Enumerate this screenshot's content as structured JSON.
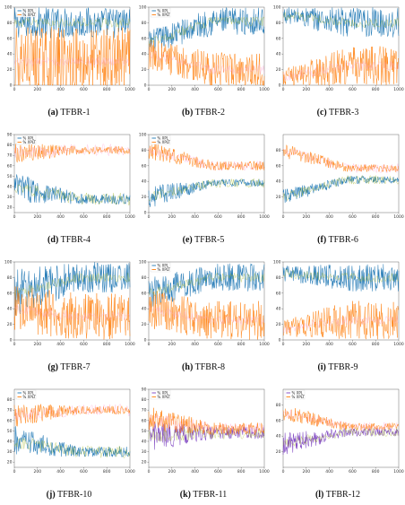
{
  "colors": {
    "pl": "#1f77b4",
    "plt": "#ff7f0e",
    "pink": "#ff9fd0",
    "olive": "#9fb320",
    "purple": "#7a3fc0"
  },
  "chart_data": [
    {
      "id": "TFBR-1",
      "caption_letter": "(a)",
      "caption_name": "TFBR-1",
      "type": "line",
      "xlim": [
        0,
        1000
      ],
      "ylim": [
        0,
        100
      ],
      "xticks": [
        0,
        200,
        400,
        600,
        800,
        1000
      ],
      "yticks": [
        0,
        20,
        40,
        60,
        80,
        100
      ],
      "legend": [
        "% XPL",
        "% XPLT"
      ],
      "series": [
        {
          "name": "% XPL",
          "color": "#1f77b4",
          "start": 80,
          "end": 80,
          "spread_start": 20,
          "spread_end": 20
        },
        {
          "name": "% XPLT",
          "color": "#ff7f0e",
          "start": 30,
          "end": 30,
          "spread_start": 45,
          "spread_end": 45
        }
      ]
    },
    {
      "id": "TFBR-2",
      "caption_letter": "(b)",
      "caption_name": "TFBR-2",
      "type": "line",
      "xlim": [
        0,
        1000
      ],
      "ylim": [
        0,
        100
      ],
      "xticks": [
        0,
        200,
        400,
        600,
        800,
        1000
      ],
      "yticks": [
        0,
        20,
        40,
        60,
        80,
        100
      ],
      "legend": [
        "% XPL",
        "% XPLT"
      ],
      "series": [
        {
          "name": "% XPL",
          "color": "#1f77b4",
          "start": 55,
          "end": 82,
          "spread_start": 15,
          "spread_end": 18
        },
        {
          "name": "% XPLT",
          "color": "#ff7f0e",
          "start": 40,
          "end": 20,
          "spread_start": 20,
          "spread_end": 22
        }
      ]
    },
    {
      "id": "TFBR-3",
      "caption_letter": "(c)",
      "caption_name": "TFBR-3",
      "type": "line",
      "xlim": [
        0,
        1000
      ],
      "ylim": [
        0,
        100
      ],
      "xticks": [
        0,
        200,
        400,
        600,
        800,
        1000
      ],
      "yticks": [
        0,
        20,
        40,
        60,
        80,
        100
      ],
      "legend": [],
      "series": [
        {
          "name": "% XPL",
          "color": "#1f77b4",
          "start": 90,
          "end": 80,
          "spread_start": 10,
          "spread_end": 20
        },
        {
          "name": "% XPLT",
          "color": "#ff7f0e",
          "start": 10,
          "end": 25,
          "spread_start": 10,
          "spread_end": 25
        }
      ]
    },
    {
      "id": "TFBR-4",
      "caption_letter": "(d)",
      "caption_name": "TFBR-4",
      "type": "line",
      "xlim": [
        0,
        1000
      ],
      "ylim": [
        15,
        90
      ],
      "xticks": [
        0,
        200,
        400,
        600,
        800,
        1000
      ],
      "yticks": [
        20,
        30,
        40,
        50,
        60,
        70,
        80,
        90
      ],
      "legend": [
        "% XPL",
        "% XPLT"
      ],
      "series": [
        {
          "name": "% XPL",
          "color": "#1f77b4",
          "start": 40,
          "end": 28,
          "spread_start": 15,
          "spread_end": 5
        },
        {
          "name": "% XPLT",
          "color": "#ff7f0e",
          "start": 72,
          "end": 75,
          "spread_start": 10,
          "spread_end": 4
        }
      ]
    },
    {
      "id": "TFBR-5",
      "caption_letter": "(e)",
      "caption_name": "TFBR-5",
      "type": "line",
      "xlim": [
        0,
        1000
      ],
      "ylim": [
        0,
        100
      ],
      "xticks": [
        0,
        200,
        400,
        600,
        800,
        1000
      ],
      "yticks": [
        0,
        20,
        40,
        60,
        80,
        100
      ],
      "legend": [
        "% XPL",
        "% XPLT"
      ],
      "series": [
        {
          "name": "% XPL",
          "color": "#1f77b4",
          "start": 20,
          "end": 38,
          "spread_start": 15,
          "spread_end": 5
        },
        {
          "name": "% XPLT",
          "color": "#ff7f0e",
          "start": 80,
          "end": 60,
          "spread_start": 12,
          "spread_end": 6
        }
      ]
    },
    {
      "id": "TFBR-6",
      "caption_letter": "(f)",
      "caption_name": "TFBR-6",
      "type": "line",
      "xlim": [
        0,
        1000
      ],
      "ylim": [
        0,
        100
      ],
      "xticks": [
        0,
        200,
        400,
        600,
        800,
        1000
      ],
      "yticks": [
        20,
        40,
        60,
        80
      ],
      "legend": [],
      "series": [
        {
          "name": "% XPL",
          "color": "#1f77b4",
          "start": 20,
          "end": 42,
          "spread_start": 10,
          "spread_end": 5
        },
        {
          "name": "% XPLT",
          "color": "#ff7f0e",
          "start": 80,
          "end": 57,
          "spread_start": 10,
          "spread_end": 5
        }
      ]
    },
    {
      "id": "TFBR-7",
      "caption_letter": "(g)",
      "caption_name": "TFBR-7",
      "type": "line",
      "xlim": [
        0,
        1000
      ],
      "ylim": [
        0,
        100
      ],
      "xticks": [
        0,
        200,
        400,
        600,
        800,
        1000
      ],
      "yticks": [
        0,
        20,
        40,
        60,
        80,
        100
      ],
      "legend": [],
      "series": [
        {
          "name": "% XPL",
          "color": "#1f77b4",
          "start": 60,
          "end": 80,
          "spread_start": 30,
          "spread_end": 20
        },
        {
          "name": "% XPLT",
          "color": "#ff7f0e",
          "start": 40,
          "end": 30,
          "spread_start": 30,
          "spread_end": 30
        }
      ]
    },
    {
      "id": "TFBR-8",
      "caption_letter": "(h)",
      "caption_name": "TFBR-8",
      "type": "line",
      "xlim": [
        0,
        1000
      ],
      "ylim": [
        0,
        100
      ],
      "xticks": [
        0,
        200,
        400,
        600,
        800,
        1000
      ],
      "yticks": [
        0,
        20,
        40,
        60,
        80,
        100
      ],
      "legend": [
        "% XPL",
        "% XPLT"
      ],
      "series": [
        {
          "name": "% XPL",
          "color": "#1f77b4",
          "start": 60,
          "end": 80,
          "spread_start": 20,
          "spread_end": 18
        },
        {
          "name": "% XPLT",
          "color": "#ff7f0e",
          "start": 40,
          "end": 25,
          "spread_start": 25,
          "spread_end": 25
        }
      ]
    },
    {
      "id": "TFBR-9",
      "caption_letter": "(i)",
      "caption_name": "TFBR-9",
      "type": "line",
      "xlim": [
        0,
        1000
      ],
      "ylim": [
        0,
        100
      ],
      "xticks": [
        0,
        200,
        400,
        600,
        800,
        1000
      ],
      "yticks": [
        0,
        20,
        40,
        60,
        80,
        100
      ],
      "legend": [],
      "series": [
        {
          "name": "% XPL",
          "color": "#1f77b4",
          "start": 85,
          "end": 80,
          "spread_start": 10,
          "spread_end": 18
        },
        {
          "name": "% XPLT",
          "color": "#ff7f0e",
          "start": 15,
          "end": 25,
          "spread_start": 10,
          "spread_end": 25
        }
      ]
    },
    {
      "id": "TFBR-10",
      "caption_letter": "(j)",
      "caption_name": "TFBR-10",
      "type": "line",
      "xlim": [
        0,
        1000
      ],
      "ylim": [
        15,
        90
      ],
      "xticks": [
        0,
        200,
        400,
        600,
        800,
        1000
      ],
      "yticks": [
        20,
        30,
        40,
        50,
        60,
        70,
        80
      ],
      "legend": [
        "% XPL",
        "% XPLT"
      ],
      "series": [
        {
          "name": "% XPL",
          "color": "#1f77b4",
          "start": 40,
          "end": 30,
          "spread_start": 15,
          "spread_end": 5
        },
        {
          "name": "% XPLT",
          "color": "#ff7f0e",
          "start": 65,
          "end": 70,
          "spread_start": 12,
          "spread_end": 4
        }
      ]
    },
    {
      "id": "TFBR-11",
      "caption_letter": "(k)",
      "caption_name": "TFBR-11",
      "type": "line",
      "xlim": [
        0,
        1000
      ],
      "ylim": [
        15,
        90
      ],
      "xticks": [
        0,
        200,
        400,
        600,
        800,
        1000
      ],
      "yticks": [
        20,
        30,
        40,
        50,
        60,
        70,
        80,
        90
      ],
      "legend": [
        "% XPL",
        "% XPLT"
      ],
      "series": [
        {
          "name": "% XPL",
          "color": "#7a3fc0",
          "start": 45,
          "end": 48,
          "spread_start": 15,
          "spread_end": 6
        },
        {
          "name": "% XPLT",
          "color": "#ff7f0e",
          "start": 62,
          "end": 52,
          "spread_start": 12,
          "spread_end": 6
        }
      ]
    },
    {
      "id": "TFBR-12",
      "caption_letter": "(l)",
      "caption_name": "TFBR-12",
      "type": "line",
      "xlim": [
        0,
        1000
      ],
      "ylim": [
        0,
        100
      ],
      "xticks": [
        0,
        200,
        400,
        600,
        800,
        1000
      ],
      "yticks": [
        20,
        40,
        60,
        80
      ],
      "legend": [
        "% XPL",
        "% XPLT"
      ],
      "series": [
        {
          "name": "% XPL",
          "color": "#7a3fc0",
          "start": 30,
          "end": 45,
          "spread_start": 15,
          "spread_end": 5
        },
        {
          "name": "% XPLT",
          "color": "#ff7f0e",
          "start": 70,
          "end": 52,
          "spread_start": 12,
          "spread_end": 5
        }
      ]
    }
  ]
}
